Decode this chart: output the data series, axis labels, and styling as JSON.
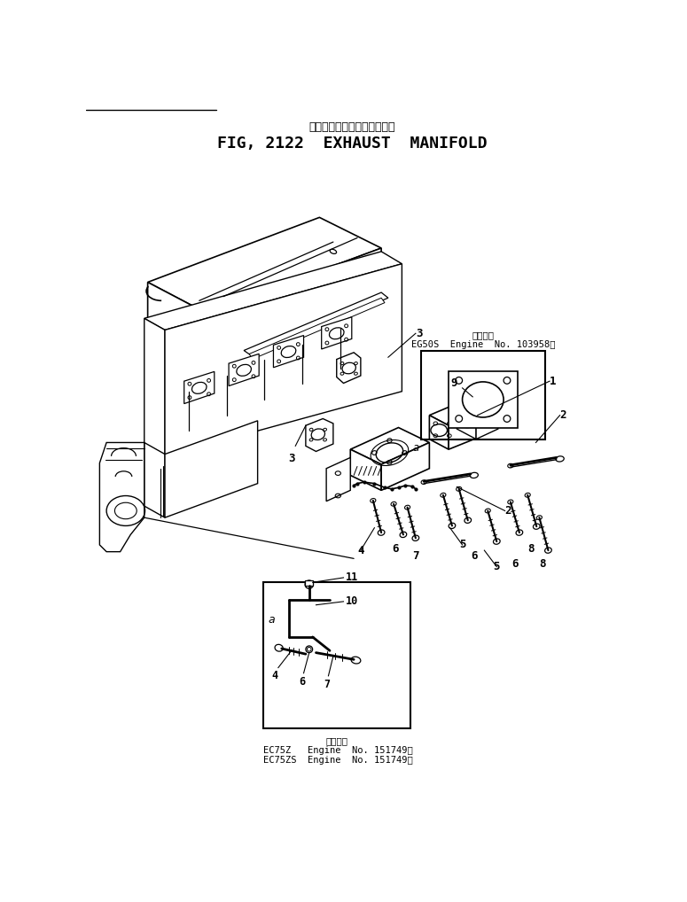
{
  "title_jp": "エキゾースト　マニホールド",
  "title_en": "FIG, 2122  EXHAUST  MANIFOLD",
  "bg_color": "#ffffff",
  "line_color": "#000000",
  "box1_label_jp": "適用号機",
  "box1_label_en": "EG50S  Engine  No. 103958～",
  "box2_label_jp": "適用号機",
  "box2_line1": "EC75Z   Engine  No. 151749～",
  "box2_line2": "EC75ZS  Engine  No. 151749～"
}
